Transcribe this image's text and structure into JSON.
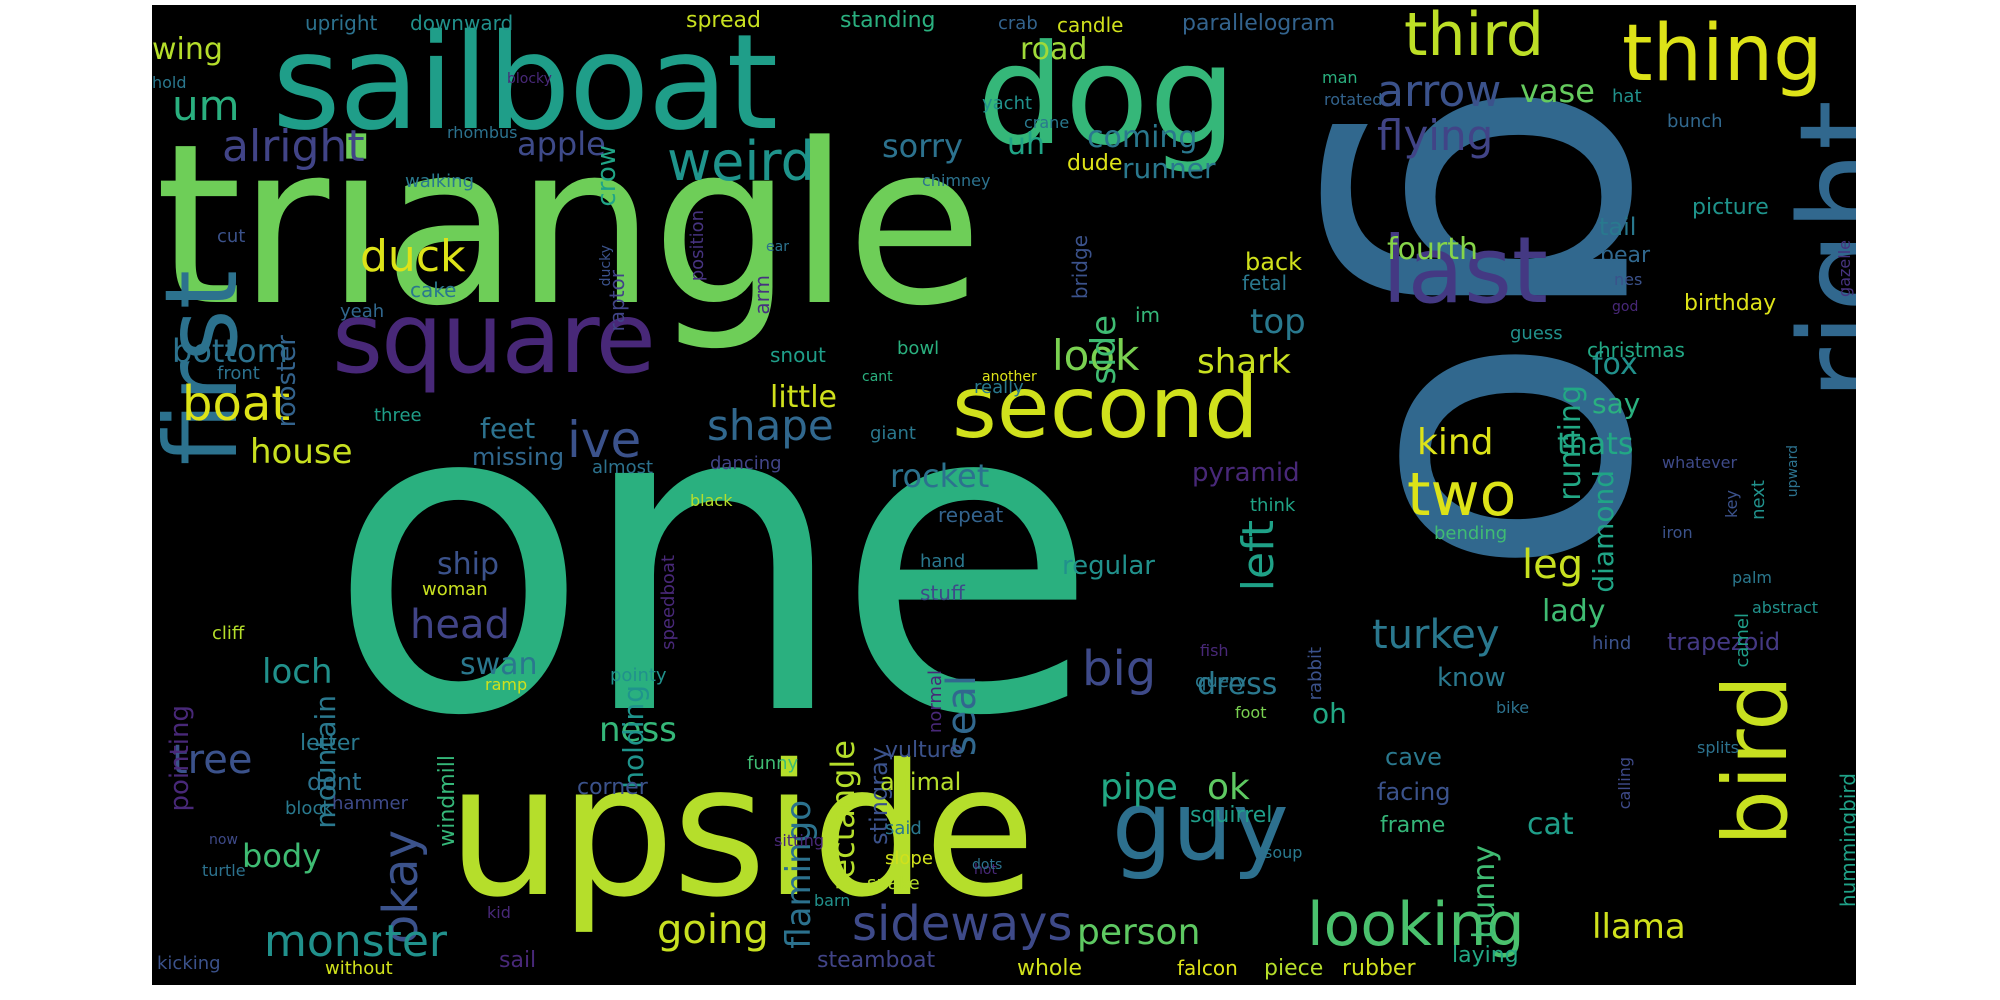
{
  "words": [
    {
      "text": "one",
      "color": "#2ab07f"
    },
    {
      "text": "go",
      "color": "#31688e"
    },
    {
      "text": "triangle",
      "color": "#6ece58"
    },
    {
      "text": "upside",
      "color": "#b5de2b"
    },
    {
      "text": "sailboat",
      "color": "#1f9e89"
    },
    {
      "text": "dog",
      "color": "#35b779"
    },
    {
      "text": "right",
      "color": "#31688e"
    },
    {
      "text": "first",
      "color": "#2c728e"
    },
    {
      "text": "bird",
      "color": "#c8e020"
    },
    {
      "text": "square",
      "color": "#482878"
    },
    {
      "text": "second",
      "color": "#d0e11c"
    },
    {
      "text": "guy",
      "color": "#2d708e"
    },
    {
      "text": "last",
      "color": "#443983"
    },
    {
      "text": "thing",
      "color": "#dde318"
    },
    {
      "text": "third",
      "color": "#bddf26"
    },
    {
      "text": "looking",
      "color": "#4ac16d"
    },
    {
      "text": "sideways",
      "color": "#3e4a89"
    },
    {
      "text": "two",
      "color": "#dde318"
    },
    {
      "text": "weird",
      "color": "#1f948c"
    },
    {
      "text": "okay",
      "color": "#3b528b"
    },
    {
      "text": "monster",
      "color": "#21918c"
    },
    {
      "text": "arrow",
      "color": "#3b528b"
    },
    {
      "text": "flying",
      "color": "#414487"
    },
    {
      "text": "alright",
      "color": "#414487"
    },
    {
      "text": "going",
      "color": "#c8e020"
    },
    {
      "text": "boat",
      "color": "#dde318"
    },
    {
      "text": "ive",
      "color": "#3b528b"
    },
    {
      "text": "shape",
      "color": "#31688e"
    },
    {
      "text": "look",
      "color": "#7ad151"
    },
    {
      "text": "left",
      "color": "#1fa187"
    },
    {
      "text": "duck",
      "color": "#dde318"
    },
    {
      "text": "turkey",
      "color": "#2a788e"
    },
    {
      "text": "person",
      "color": "#5ec962"
    },
    {
      "text": "head",
      "color": "#414487"
    },
    {
      "text": "big",
      "color": "#3e4a89"
    },
    {
      "text": "um",
      "color": "#2ab07f"
    },
    {
      "text": "kind",
      "color": "#dde318"
    },
    {
      "text": "llama",
      "color": "#d0e11c"
    },
    {
      "text": "house",
      "color": "#c8e020"
    },
    {
      "text": "ness",
      "color": "#35b779"
    },
    {
      "text": "loch",
      "color": "#21918c"
    },
    {
      "text": "seal",
      "color": "#31688e"
    },
    {
      "text": "flamingo",
      "color": "#2c728e"
    },
    {
      "text": "rectangle",
      "color": "#b5de2b"
    },
    {
      "text": "pipe",
      "color": "#22a884"
    },
    {
      "text": "ok",
      "color": "#5ec962"
    },
    {
      "text": "body",
      "color": "#3fbc73"
    },
    {
      "text": "tree",
      "color": "#3b528b"
    },
    {
      "text": "top",
      "color": "#29798e"
    },
    {
      "text": "bottom",
      "color": "#2c728e"
    },
    {
      "text": "leg",
      "color": "#c8e020"
    },
    {
      "text": "side",
      "color": "#3fbc73"
    },
    {
      "text": "rocket",
      "color": "#2c728e"
    },
    {
      "text": "shark",
      "color": "#c8e020"
    },
    {
      "text": "fourth",
      "color": "#86d549"
    },
    {
      "text": "vase",
      "color": "#65cb5e"
    },
    {
      "text": "coming",
      "color": "#2a788e"
    },
    {
      "text": "sorry",
      "color": "#2c728e"
    },
    {
      "text": "apple",
      "color": "#3e4a89"
    },
    {
      "text": "road",
      "color": "#a0da39"
    },
    {
      "text": "uh",
      "color": "#20a486"
    },
    {
      "text": "wing",
      "color": "#b5de2b"
    },
    {
      "text": "swan",
      "color": "#2a788e"
    },
    {
      "text": "ship",
      "color": "#3b528b"
    },
    {
      "text": "dress",
      "color": "#2a788e"
    },
    {
      "text": "running",
      "color": "#22a884"
    },
    {
      "text": "diamond",
      "color": "#20a486"
    },
    {
      "text": "lady",
      "color": "#3fbc73"
    },
    {
      "text": "thats",
      "color": "#22a884"
    },
    {
      "text": "fox",
      "color": "#21918c"
    },
    {
      "text": "say",
      "color": "#2ab07f"
    },
    {
      "text": "bunny",
      "color": "#3fbc73"
    },
    {
      "text": "cat",
      "color": "#1f9e89"
    },
    {
      "text": "holding",
      "color": "#1f948c"
    },
    {
      "text": "mountain",
      "color": "#2a788e"
    },
    {
      "text": "little",
      "color": "#d0e11c"
    },
    {
      "text": "feet",
      "color": "#2c728e"
    },
    {
      "text": "oh",
      "color": "#22a884"
    },
    {
      "text": "know",
      "color": "#2a788e"
    },
    {
      "text": "runner",
      "color": "#2a788e"
    },
    {
      "text": "regular",
      "color": "#21918c"
    },
    {
      "text": "crow",
      "color": "#20a486"
    },
    {
      "text": "rooster",
      "color": "#33638d"
    },
    {
      "text": "missing",
      "color": "#31688e"
    },
    {
      "text": "pointing",
      "color": "#482878"
    },
    {
      "text": "stingray",
      "color": "#3b528b"
    },
    {
      "text": "pyramid",
      "color": "#482878"
    },
    {
      "text": "tail",
      "color": "#29798e"
    },
    {
      "text": "back",
      "color": "#d0e11c"
    },
    {
      "text": "trapezoid",
      "color": "#443983"
    },
    {
      "text": "birthday",
      "color": "#dde318"
    },
    {
      "text": "picture",
      "color": "#1f948c"
    },
    {
      "text": "bear",
      "color": "#31688e"
    },
    {
      "text": "cave",
      "color": "#2a788e"
    },
    {
      "text": "facing",
      "color": "#3b528b"
    },
    {
      "text": "frame",
      "color": "#35b779"
    },
    {
      "text": "animal",
      "color": "#b5de2b"
    },
    {
      "text": "vulture",
      "color": "#3b528b"
    },
    {
      "text": "squirrel",
      "color": "#1f9e89"
    },
    {
      "text": "dont",
      "color": "#2c728e"
    },
    {
      "text": "letter",
      "color": "#29798e"
    },
    {
      "text": "corner",
      "color": "#3b528b"
    },
    {
      "text": "windmill",
      "color": "#35b779"
    },
    {
      "text": "steamboat",
      "color": "#414487"
    },
    {
      "text": "falcon",
      "color": "#dde318"
    },
    {
      "text": "rubber",
      "color": "#d0e11c"
    },
    {
      "text": "laying",
      "color": "#22a884"
    },
    {
      "text": "whole",
      "color": "#d0e11c"
    },
    {
      "text": "piece",
      "color": "#b5de2b"
    },
    {
      "text": "sail",
      "color": "#482878"
    },
    {
      "text": "hummingbird",
      "color": "#1fa187"
    },
    {
      "text": "christmas",
      "color": "#22a884"
    },
    {
      "text": "guess",
      "color": "#21918c"
    },
    {
      "text": "fetal",
      "color": "#2a788e"
    },
    {
      "text": "bridge",
      "color": "#3b528b"
    },
    {
      "text": "raptor",
      "color": "#414487"
    },
    {
      "text": "im",
      "color": "#35b779"
    },
    {
      "text": "cake",
      "color": "#2a788e"
    },
    {
      "text": "yeah",
      "color": "#31688e"
    },
    {
      "text": "position",
      "color": "#46337f"
    },
    {
      "text": "arm",
      "color": "#46337f"
    },
    {
      "text": "bowl",
      "color": "#2ab07f"
    },
    {
      "text": "snout",
      "color": "#1f9e89"
    },
    {
      "text": "really",
      "color": "#29798e"
    },
    {
      "text": "another",
      "color": "#dde318"
    },
    {
      "text": "cant",
      "color": "#2ab07f"
    },
    {
      "text": "almost",
      "color": "#2c728e"
    },
    {
      "text": "giant",
      "color": "#2a788e"
    },
    {
      "text": "dancing",
      "color": "#414487"
    },
    {
      "text": "black",
      "color": "#b5de2b"
    },
    {
      "text": "repeat",
      "color": "#33638d"
    },
    {
      "text": "think",
      "color": "#20a486"
    },
    {
      "text": "hand",
      "color": "#2a788e"
    },
    {
      "text": "stuff",
      "color": "#3e4a89"
    },
    {
      "text": "normal",
      "color": "#482878"
    },
    {
      "text": "funny",
      "color": "#3fbc73"
    },
    {
      "text": "said",
      "color": "#2a788e"
    },
    {
      "text": "slope",
      "color": "#d0e11c"
    },
    {
      "text": "snake",
      "color": "#b5de2b"
    },
    {
      "text": "hot",
      "color": "#482878"
    },
    {
      "text": "soup",
      "color": "#29798e"
    },
    {
      "text": "query",
      "color": "#2a788e"
    },
    {
      "text": "rabbit",
      "color": "#3b528b"
    },
    {
      "text": "foot",
      "color": "#7ad151"
    },
    {
      "text": "fish",
      "color": "#482878"
    },
    {
      "text": "hind",
      "color": "#3b528b"
    },
    {
      "text": "bike",
      "color": "#2c728e"
    },
    {
      "text": "calling",
      "color": "#3e4a89"
    },
    {
      "text": "splits",
      "color": "#2c728e"
    },
    {
      "text": "palm",
      "color": "#2a788e"
    },
    {
      "text": "camel",
      "color": "#1f9e89"
    },
    {
      "text": "key",
      "color": "#3b528b"
    },
    {
      "text": "iron",
      "color": "#3b528b"
    },
    {
      "text": "next",
      "color": "#21918c"
    },
    {
      "text": "upward",
      "color": "#2c728e"
    },
    {
      "text": "abstract",
      "color": "#21918c"
    },
    {
      "text": "gazelle",
      "color": "#46337f"
    },
    {
      "text": "god",
      "color": "#482878"
    },
    {
      "text": "nes",
      "color": "#3b528b"
    },
    {
      "text": "ear",
      "color": "#2c728e"
    },
    {
      "text": "ducky",
      "color": "#3b528b"
    },
    {
      "text": "chimney",
      "color": "#2c728e"
    },
    {
      "text": "dude",
      "color": "#dde318"
    },
    {
      "text": "crane",
      "color": "#29798e"
    },
    {
      "text": "bunch",
      "color": "#31688e"
    },
    {
      "text": "hat",
      "color": "#21918c"
    },
    {
      "text": "man",
      "color": "#2ab07f"
    },
    {
      "text": "rotated",
      "color": "#33638d"
    },
    {
      "text": "yacht",
      "color": "#21918c"
    },
    {
      "text": "parallelogram",
      "color": "#33638d"
    },
    {
      "text": "candle",
      "color": "#d0e11c"
    },
    {
      "text": "crab",
      "color": "#33638d"
    },
    {
      "text": "standing",
      "color": "#2ab07f"
    },
    {
      "text": "spread",
      "color": "#c8e020"
    },
    {
      "text": "downward",
      "color": "#21918c"
    },
    {
      "text": "upright",
      "color": "#2c728e"
    },
    {
      "text": "hold",
      "color": "#2a788e"
    },
    {
      "text": "blocky",
      "color": "#482878"
    },
    {
      "text": "rhombus",
      "color": "#2c728e"
    },
    {
      "text": "walking",
      "color": "#29798e"
    },
    {
      "text": "cut",
      "color": "#3b528b"
    },
    {
      "text": "front",
      "color": "#2c728e"
    },
    {
      "text": "three",
      "color": "#1f9e89"
    },
    {
      "text": "woman",
      "color": "#c8e020"
    },
    {
      "text": "speedboat",
      "color": "#482878"
    },
    {
      "text": "cliff",
      "color": "#b5de2b"
    },
    {
      "text": "ramp",
      "color": "#d0e11c"
    },
    {
      "text": "pointy",
      "color": "#21918c"
    },
    {
      "text": "hammer",
      "color": "#3e4a89"
    },
    {
      "text": "block",
      "color": "#29798e"
    },
    {
      "text": "now",
      "color": "#3e4a89"
    },
    {
      "text": "sitting",
      "color": "#482878"
    },
    {
      "text": "dots",
      "color": "#2c728e"
    },
    {
      "text": "barn",
      "color": "#21918c"
    },
    {
      "text": "turtle",
      "color": "#2c728e"
    },
    {
      "text": "kid",
      "color": "#482878"
    },
    {
      "text": "kicking",
      "color": "#3b528b"
    },
    {
      "text": "without",
      "color": "#d0e11c"
    },
    {
      "text": "whatever",
      "color": "#3e4a89"
    },
    {
      "text": "bending",
      "color": "#3fbc73"
    }
  ]
}
